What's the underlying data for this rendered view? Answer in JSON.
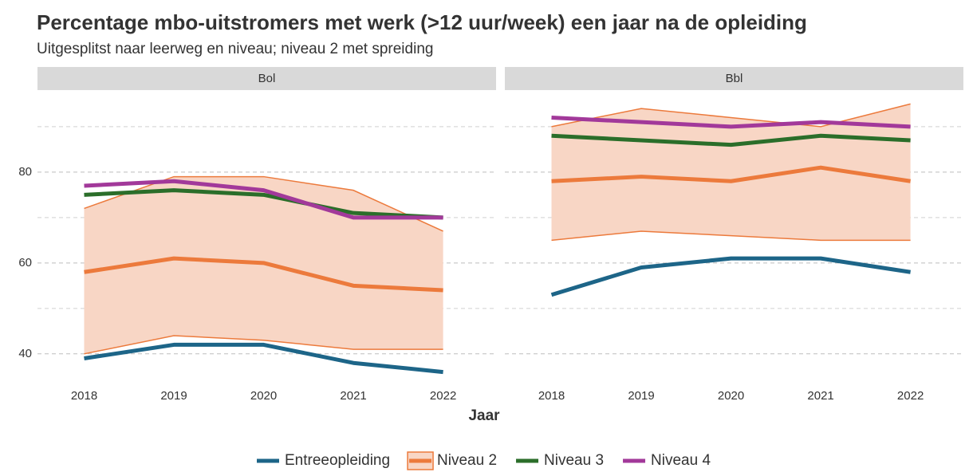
{
  "chart_data": {
    "type": "line",
    "title": "Percentage mbo-uitstromers met werk (>12 uur/week) een jaar na de opleiding",
    "subtitle": "Uitgesplitst naar leerweg en niveau; niveau 2 met spreiding",
    "x_label": "Jaar",
    "x": [
      2018,
      2019,
      2020,
      2021,
      2022
    ],
    "xlim": [
      2017.48,
      2022.59
    ],
    "xticks": [
      2018,
      2019,
      2020,
      2021,
      2022
    ],
    "ylim": [
      34,
      97.7
    ],
    "yticks": [
      40,
      60,
      80
    ],
    "minor_yticks": [
      50,
      70,
      90
    ],
    "grid": true,
    "legend": "bottom",
    "series_names": [
      "Entreeopleiding",
      "Niveau 2",
      "Niveau 3",
      "Niveau 4"
    ],
    "colors": [
      "#1d6588",
      "#ec7a3c",
      "#2b6e2a",
      "#a2399a"
    ],
    "band_color": "#f8d6c5",
    "facets": [
      {
        "name": "Bol",
        "series": [
          {
            "values": [
              39,
              42,
              42,
              38,
              36
            ]
          },
          {
            "values": [
              58,
              61,
              60,
              55,
              54
            ],
            "lower": [
              40,
              44,
              43,
              41,
              41
            ],
            "upper": [
              72,
              79,
              79,
              76,
              67
            ]
          },
          {
            "values": [
              75,
              76,
              75,
              71,
              70
            ]
          },
          {
            "values": [
              77,
              78,
              76,
              70,
              70
            ]
          }
        ]
      },
      {
        "name": "Bbl",
        "series": [
          {
            "values": [
              53,
              59,
              61,
              61,
              58
            ]
          },
          {
            "values": [
              78,
              79,
              78,
              81,
              78
            ],
            "lower": [
              65,
              67,
              66,
              65,
              65
            ],
            "upper": [
              90,
              94,
              92,
              90,
              95
            ]
          },
          {
            "values": [
              88,
              87,
              86,
              88,
              87
            ]
          },
          {
            "values": [
              92,
              91,
              90,
              91,
              90
            ]
          }
        ]
      }
    ]
  }
}
